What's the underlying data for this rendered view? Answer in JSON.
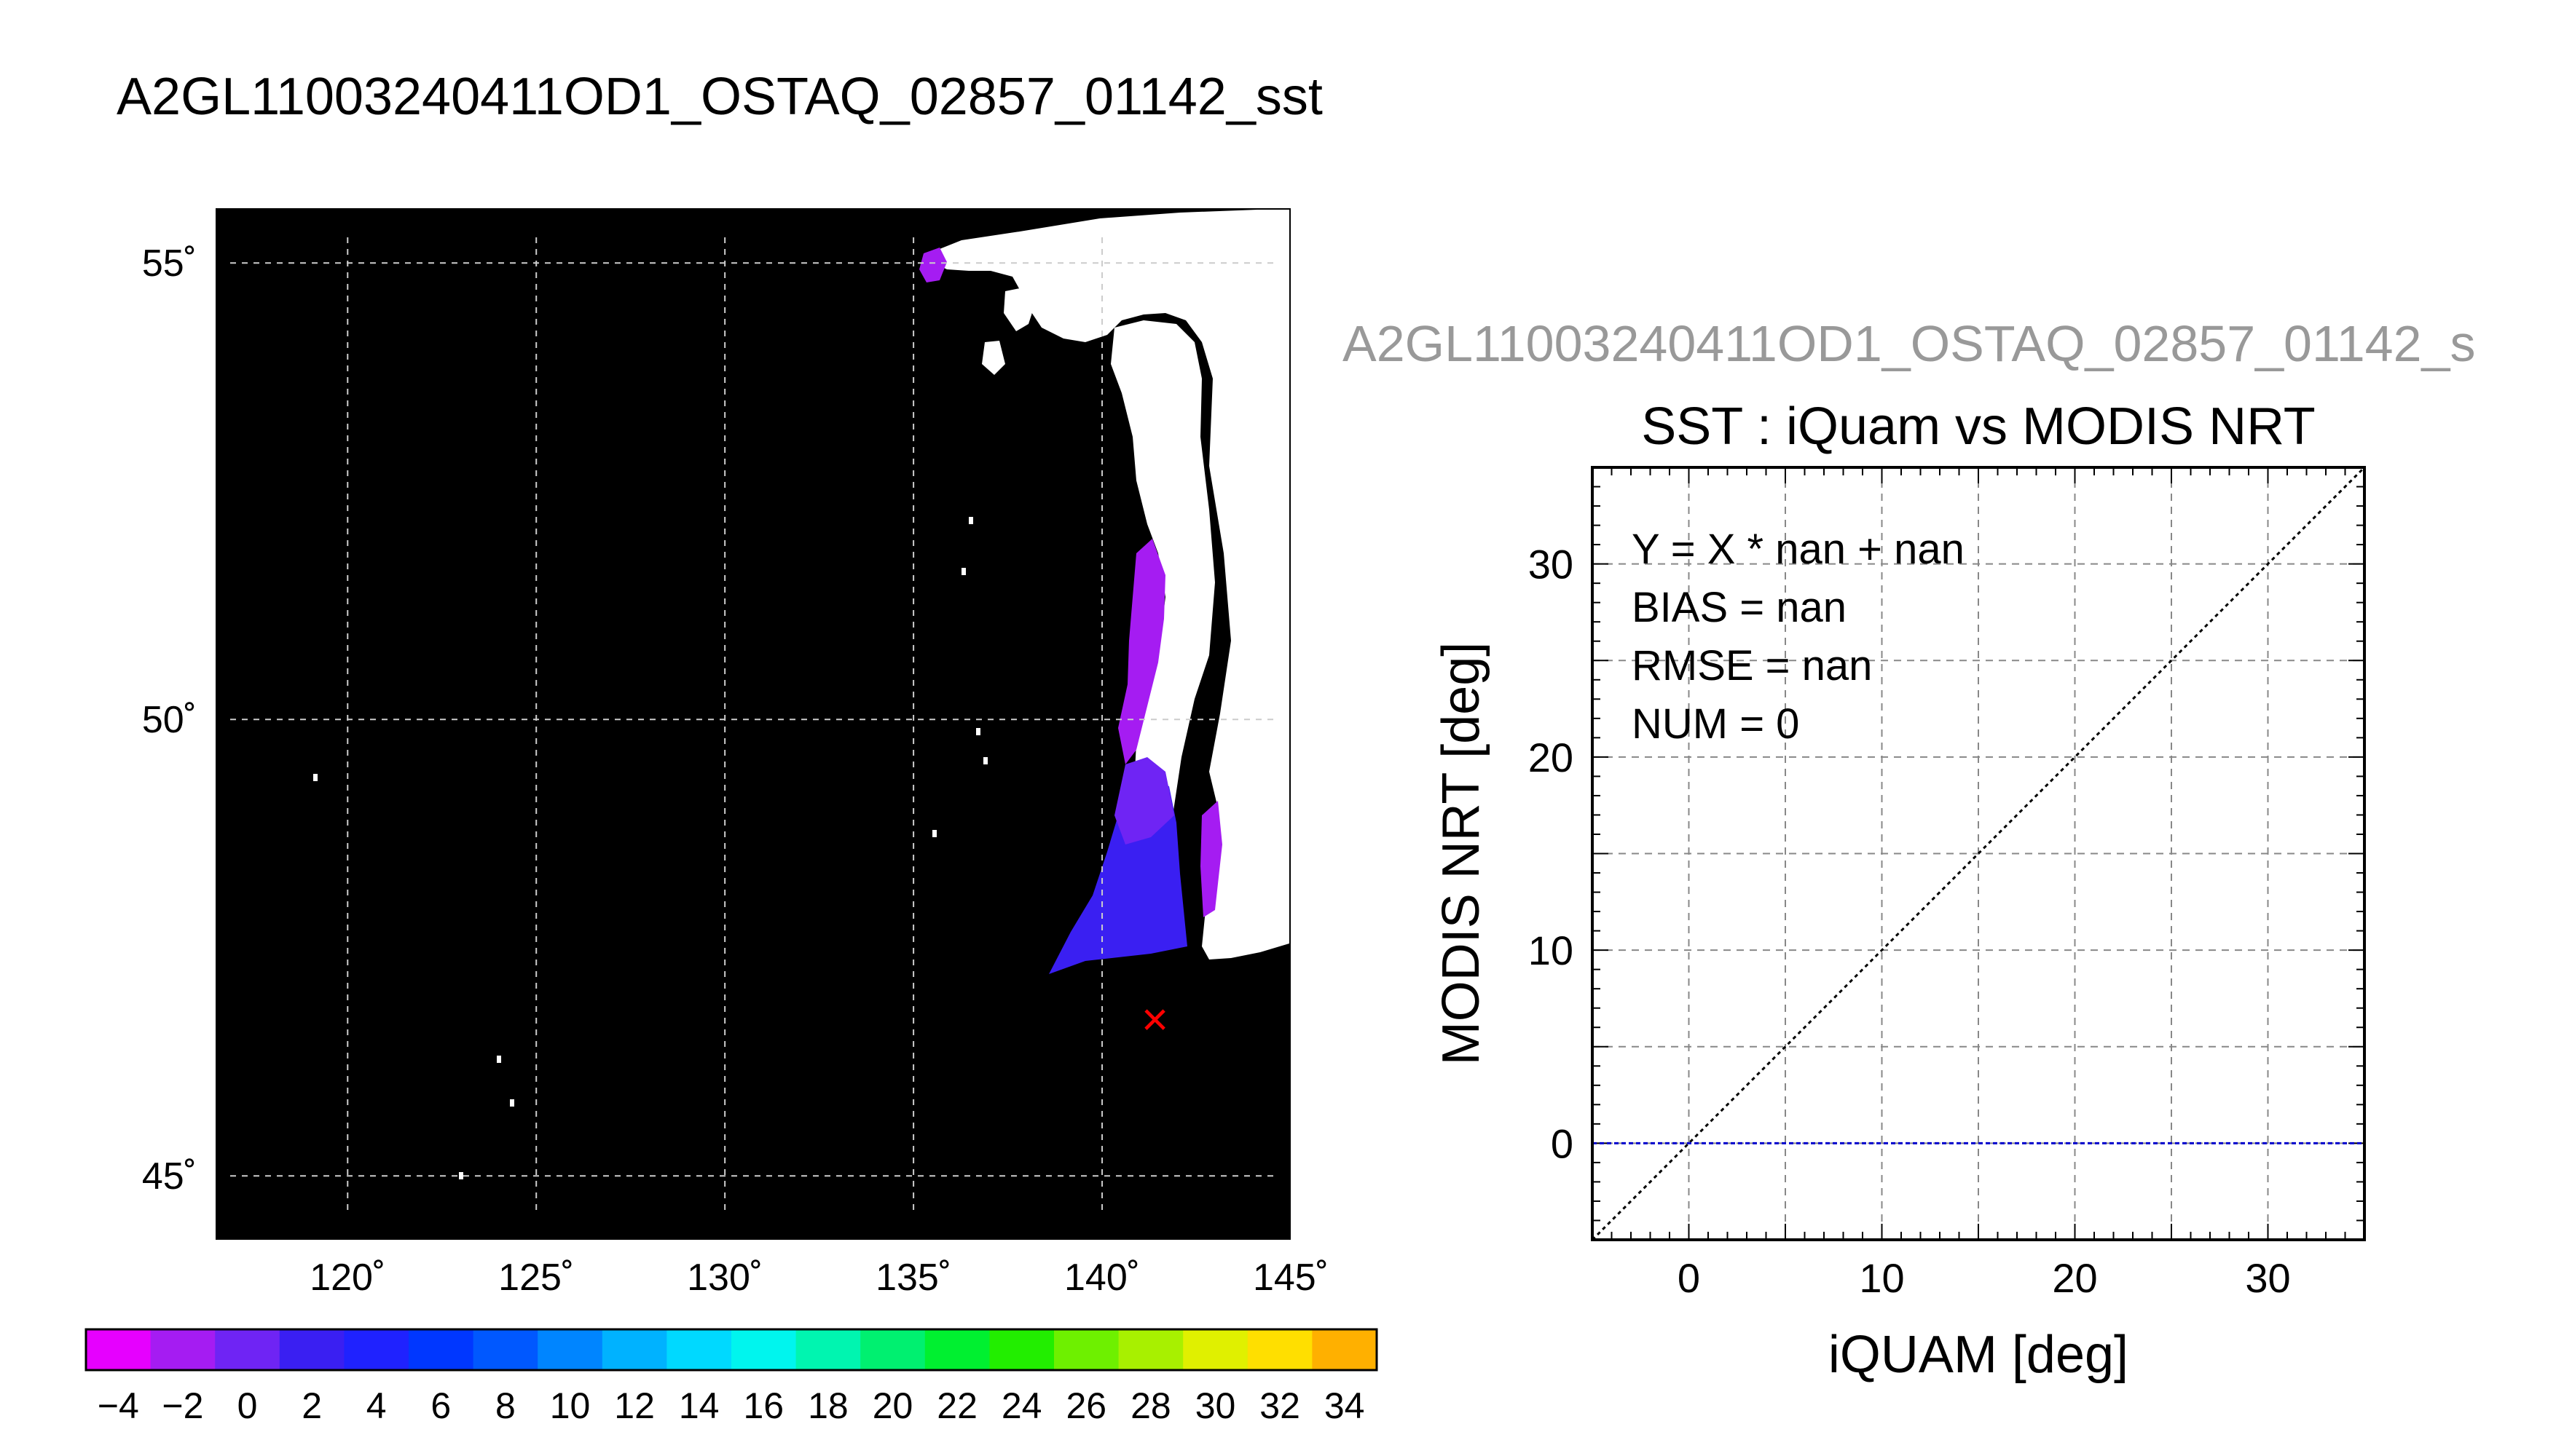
{
  "title": "A2GL11003240411OD1_OSTAQ_02857_01142_sst",
  "chart_data": [
    {
      "type": "heatmap",
      "title": "",
      "map": {
        "lon_range": [
          116.5,
          145
        ],
        "lat_range": [
          44.3,
          55.6
        ],
        "lon_ticks": [
          120,
          125,
          130,
          135,
          140,
          145
        ],
        "lat_ticks": [
          45,
          50,
          55
        ],
        "lon_tick_labels": [
          "120˚",
          "125˚",
          "130˚",
          "135˚",
          "140˚",
          "145˚"
        ],
        "lat_tick_labels": [
          "45˚",
          "50˚",
          "55˚"
        ],
        "grid": true,
        "background_color": "#000000",
        "cloud_color": "#ffffff",
        "marker": {
          "symbol": "×",
          "lon": 141.4,
          "lat": 46.7,
          "color": "#ff0000"
        }
      },
      "colorbar": {
        "min": -5,
        "max": 35,
        "step": 2,
        "tick_values": [
          -4,
          -2,
          0,
          2,
          4,
          6,
          8,
          10,
          12,
          14,
          16,
          18,
          20,
          22,
          24,
          26,
          28,
          30,
          32,
          34
        ],
        "tick_labels": [
          "−4",
          "−2",
          "0",
          "2",
          "4",
          "6",
          "8",
          "10",
          "12",
          "14",
          "16",
          "18",
          "20",
          "22",
          "24",
          "26",
          "28",
          "30",
          "32",
          "34"
        ],
        "colors": [
          "#e600ff",
          "#a51cf2",
          "#6f24f4",
          "#3a1ff2",
          "#1f22ff",
          "#0037ff",
          "#0058ff",
          "#0085ff",
          "#00b2ff",
          "#00d9ff",
          "#00f5ee",
          "#00f5b0",
          "#00f070",
          "#00f030",
          "#22ee00",
          "#6ef000",
          "#a8f000",
          "#e0f000",
          "#ffdf00",
          "#ffb000",
          "#ff8a00",
          "#ff5a00",
          "#ff2a00"
        ]
      }
    },
    {
      "type": "scatter",
      "source_label": "A2GL11003240411OD1_OSTAQ_02857_01142_s",
      "title": "SST : iQuam vs MODIS NRT",
      "xlabel": "iQUAM [deg]",
      "ylabel": "MODIS NRT [deg]",
      "xlim": [
        -5,
        35
      ],
      "ylim": [
        -5,
        35
      ],
      "x_ticks": [
        0,
        10,
        20,
        30
      ],
      "y_ticks": [
        0,
        10,
        20,
        30
      ],
      "grid": true,
      "points": [],
      "stats": [
        "Y = X * nan + nan",
        "BIAS = nan",
        "RMSE = nan",
        "NUM = 0"
      ],
      "reference_lines": [
        {
          "kind": "identity",
          "color": "#000000",
          "style": "dotted"
        },
        {
          "kind": "horizontal",
          "y": 0,
          "color": "#0000cc",
          "style": "dashed"
        }
      ]
    }
  ]
}
